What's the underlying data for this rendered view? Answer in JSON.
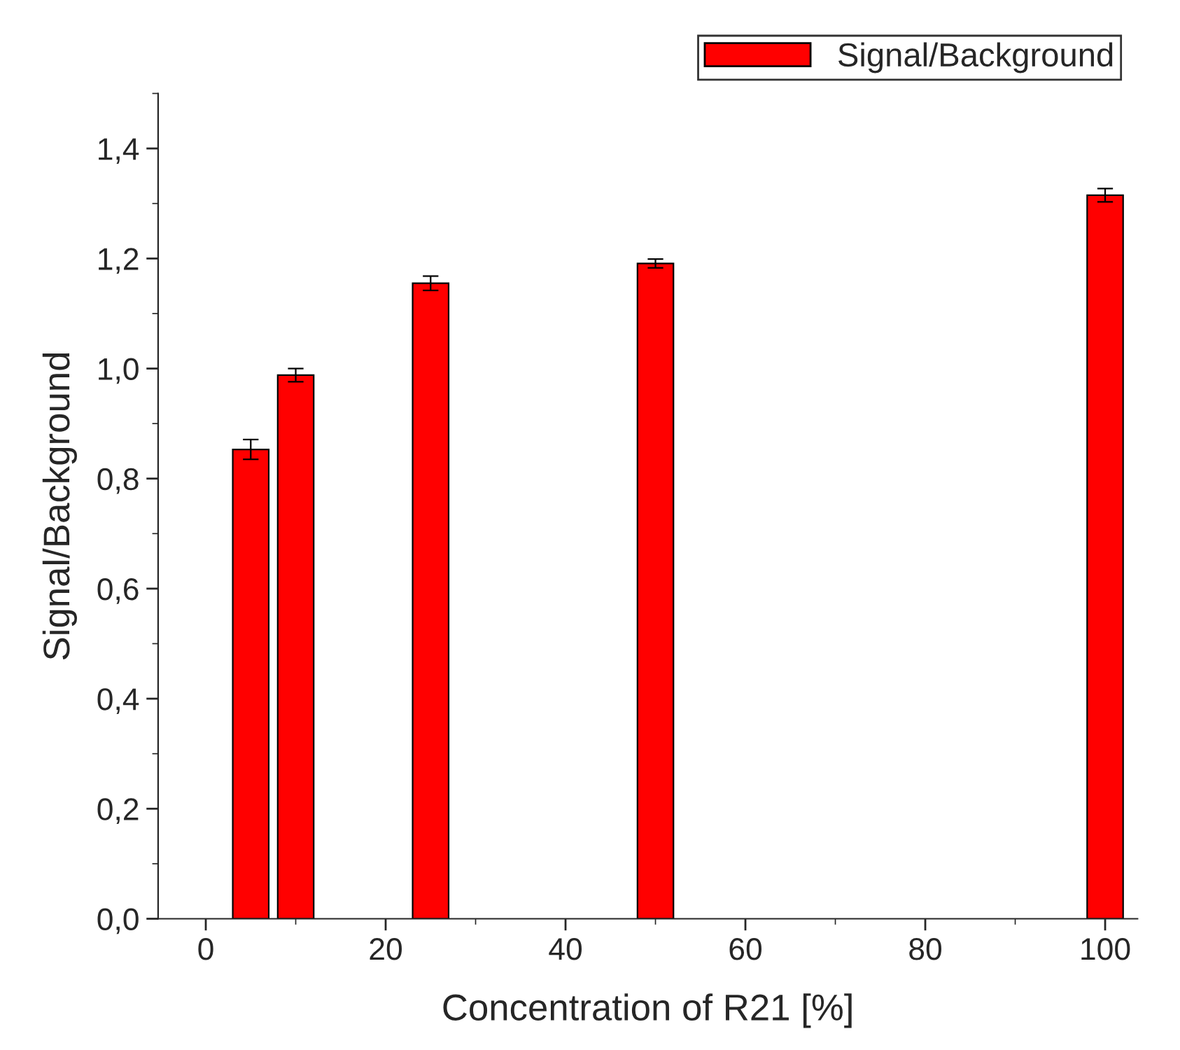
{
  "chart_data": {
    "type": "bar",
    "xlabel": "Concentration of R21 [%]",
    "ylabel": "Signal/Background",
    "x": [
      5,
      10,
      25,
      50,
      100
    ],
    "series": [
      {
        "name": "Signal/Background",
        "color": "#ff0000",
        "values": [
          0.853,
          0.988,
          1.155,
          1.191,
          1.315
        ],
        "errors": [
          0.018,
          0.012,
          0.013,
          0.008,
          0.012
        ]
      }
    ],
    "xlim": [
      -5.3,
      103.6
    ],
    "xticks": [
      0,
      20,
      40,
      60,
      80,
      100
    ],
    "ylim": [
      0,
      1.5
    ],
    "yticks": [
      {
        "value": 0,
        "label": "0,0"
      },
      {
        "value": 0.2,
        "label": "0,2"
      },
      {
        "value": 0.4,
        "label": "0,4"
      },
      {
        "value": 0.6,
        "label": "0,6"
      },
      {
        "value": 0.8,
        "label": "0,8"
      },
      {
        "value": 1.0,
        "label": "1,0"
      },
      {
        "value": 1.2,
        "label": "1,2"
      },
      {
        "value": 1.4,
        "label": "1,4"
      }
    ],
    "grid": false,
    "legend": "top right"
  }
}
